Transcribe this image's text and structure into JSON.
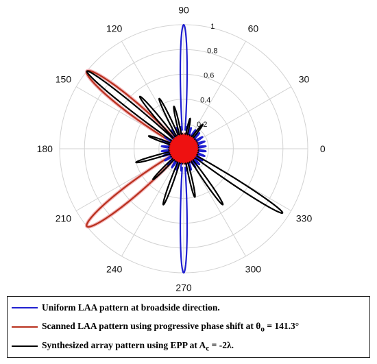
{
  "chart_data": {
    "type": "polar-line",
    "angle_ticks": [
      "0",
      "30",
      "60",
      "90",
      "120",
      "150",
      "180",
      "210",
      "240",
      "270",
      "300",
      "330"
    ],
    "radial_ticks": [
      "0.2",
      "0.4",
      "0.6",
      "0.8",
      "1"
    ],
    "radial_range": [
      0,
      1
    ],
    "grid": true,
    "legend_position": "bottom",
    "series": [
      {
        "name": "Uniform LAA pattern at broadside direction.",
        "color": "#1f1fd0",
        "main_lobes_deg": [
          90,
          270
        ],
        "main_lobe_peak": 1.0,
        "main_lobe_halfwidth_deg": 6,
        "sidelobe_level": 0.18
      },
      {
        "name": "Scanned LAA pattern using progressive phase shift at θo = 141.3°",
        "name_parts": {
          "prefix": "Scanned LAA pattern using progressive phase shift at θ",
          "sub": "o",
          "suffix": " = 141.3°"
        },
        "color": "#b8301c",
        "main_lobes_deg": [
          141.3,
          218.7
        ],
        "main_lobe_peak": 1.0,
        "main_lobe_halfwidth_deg": 12,
        "sidelobe_level": 0.12
      },
      {
        "name": "Synthesized array pattern using EPP at Ac = -2λ.",
        "name_parts": {
          "prefix": "Synthesized array pattern using EPP at A",
          "sub": "c",
          "suffix": " = -2λ."
        },
        "color": "#000000",
        "lobes": [
          {
            "angle": 141.3,
            "peak": 1.0
          },
          {
            "angle": 130,
            "peak": 0.55
          },
          {
            "angle": 116,
            "peak": 0.45
          },
          {
            "angle": 103,
            "peak": 0.35
          },
          {
            "angle": 78,
            "peak": 0.25
          },
          {
            "angle": 52,
            "peak": 0.25
          },
          {
            "angle": 160,
            "peak": 0.3
          },
          {
            "angle": 196,
            "peak": 0.4
          },
          {
            "angle": 225,
            "peak": 0.35
          },
          {
            "angle": 250,
            "peak": 0.48
          },
          {
            "angle": 283,
            "peak": 0.4
          },
          {
            "angle": 305,
            "peak": 0.55
          },
          {
            "angle": 327,
            "peak": 0.95
          }
        ],
        "lobe_halfwidth_deg": 6
      }
    ]
  }
}
